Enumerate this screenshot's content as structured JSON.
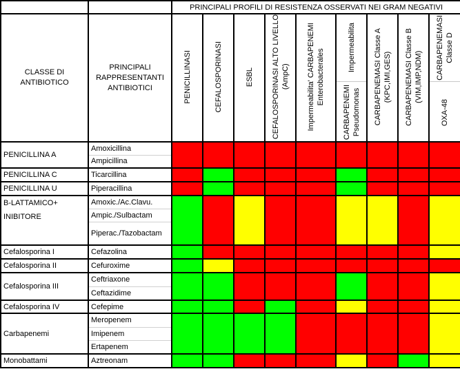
{
  "header": {
    "title": "PRINCIPALI PROFILI DI RESISTENZA OSSERVATI NEI GRAM NEGATIVI",
    "class_col": "CLASSE DI ANTIBIOTICO",
    "drug_col": "PRINCIPALI RAPPRESENTANTI ANTIBIOTICI",
    "profiles": [
      {
        "lines": [
          "PENICILLINASI"
        ]
      },
      {
        "lines": [
          "CEFALOSPORINASI"
        ]
      },
      {
        "lines": [
          "ESBL"
        ]
      },
      {
        "lines": [
          "CEFALOSPORINASI ALTO LIVELLO",
          "(AmpC)"
        ]
      },
      {
        "lines": [
          "Impermeabilita' CARBAPENEMI",
          "Enterobacterales"
        ]
      },
      {
        "top": [
          "Impermeabilita"
        ],
        "bottom": [
          "CARBAPENEMI",
          "Pseudomonas"
        ]
      },
      {
        "lines": [
          "CARBAPENEMASI Classe A",
          "(KPC,IMI,GES)"
        ]
      },
      {
        "lines": [
          "CARBAPENEMASI Classe B",
          "(VIM,IMP,NDM)"
        ]
      },
      {
        "top": [
          "CARBAPENEMASI",
          "Classe D"
        ],
        "bottom": [
          "OXA-48"
        ]
      }
    ]
  },
  "colors": {
    "R": "#ff0000",
    "G": "#00ff00",
    "Y": "#ffff00"
  },
  "groups": [
    {
      "class": [
        "PENICILLINA A"
      ],
      "drugs": [
        "Amoxicillina",
        "Ampicillina"
      ],
      "profile": [
        "R",
        "R",
        "R",
        "R",
        "R",
        "R",
        "R",
        "R",
        "R"
      ]
    },
    {
      "class": [
        "PENICILLINA C"
      ],
      "drugs": [
        "Ticarcillina"
      ],
      "profile": [
        "R",
        "G",
        "R",
        "R",
        "R",
        "G",
        "R",
        "R",
        "R"
      ]
    },
    {
      "class": [
        "PENICILLINA U"
      ],
      "drugs": [
        "Piperacillina"
      ],
      "profile": [
        "R",
        "G",
        "R",
        "R",
        "R",
        "G",
        "R",
        "R",
        "R"
      ]
    },
    {
      "class": [
        "B-LATTAMICO+",
        "INIBITORE"
      ],
      "drugs": [
        "Amoxic./Ac.Clavu.",
        "Ampic./Sulbactam",
        "Piperac./Tazobactam"
      ],
      "profile": [
        "G",
        "R",
        "Y",
        "R",
        "R",
        "Y",
        "Y",
        "R",
        "Y"
      ]
    },
    {
      "class": [
        "Cefalosporina I"
      ],
      "drugs": [
        "Cefazolina"
      ],
      "profile": [
        "G",
        "R",
        "R",
        "R",
        "R",
        "R",
        "R",
        "R",
        "Y"
      ]
    },
    {
      "class": [
        "Cefalosporina II"
      ],
      "drugs": [
        "Cefuroxime"
      ],
      "profile": [
        "G",
        "Y",
        "R",
        "R",
        "R",
        "R",
        "R",
        "R",
        "R"
      ]
    },
    {
      "class": [
        "Cefalosporina III"
      ],
      "drugs": [
        "Ceftriaxone",
        "Ceftazidime"
      ],
      "profile": [
        "G",
        "G",
        "R",
        "R",
        "R",
        "G",
        "R",
        "R",
        "Y"
      ]
    },
    {
      "class": [
        "Cefalosporina IV"
      ],
      "drugs": [
        "Cefepime"
      ],
      "profile": [
        "G",
        "G",
        "R",
        "G",
        "R",
        "Y",
        "R",
        "R",
        "Y"
      ]
    },
    {
      "class": [
        "Carbapenemi"
      ],
      "drugs": [
        "Meropenem",
        "Imipenem",
        "Ertapenem"
      ],
      "profile": [
        "G",
        "G",
        "G",
        "G",
        "R",
        "R",
        "R",
        "R",
        "Y"
      ]
    },
    {
      "class": [
        "Monobattami"
      ],
      "drugs": [
        "Aztreonam"
      ],
      "profile": [
        "G",
        "G",
        "R",
        "R",
        "R",
        "Y",
        "R",
        "G",
        "Y"
      ]
    }
  ]
}
